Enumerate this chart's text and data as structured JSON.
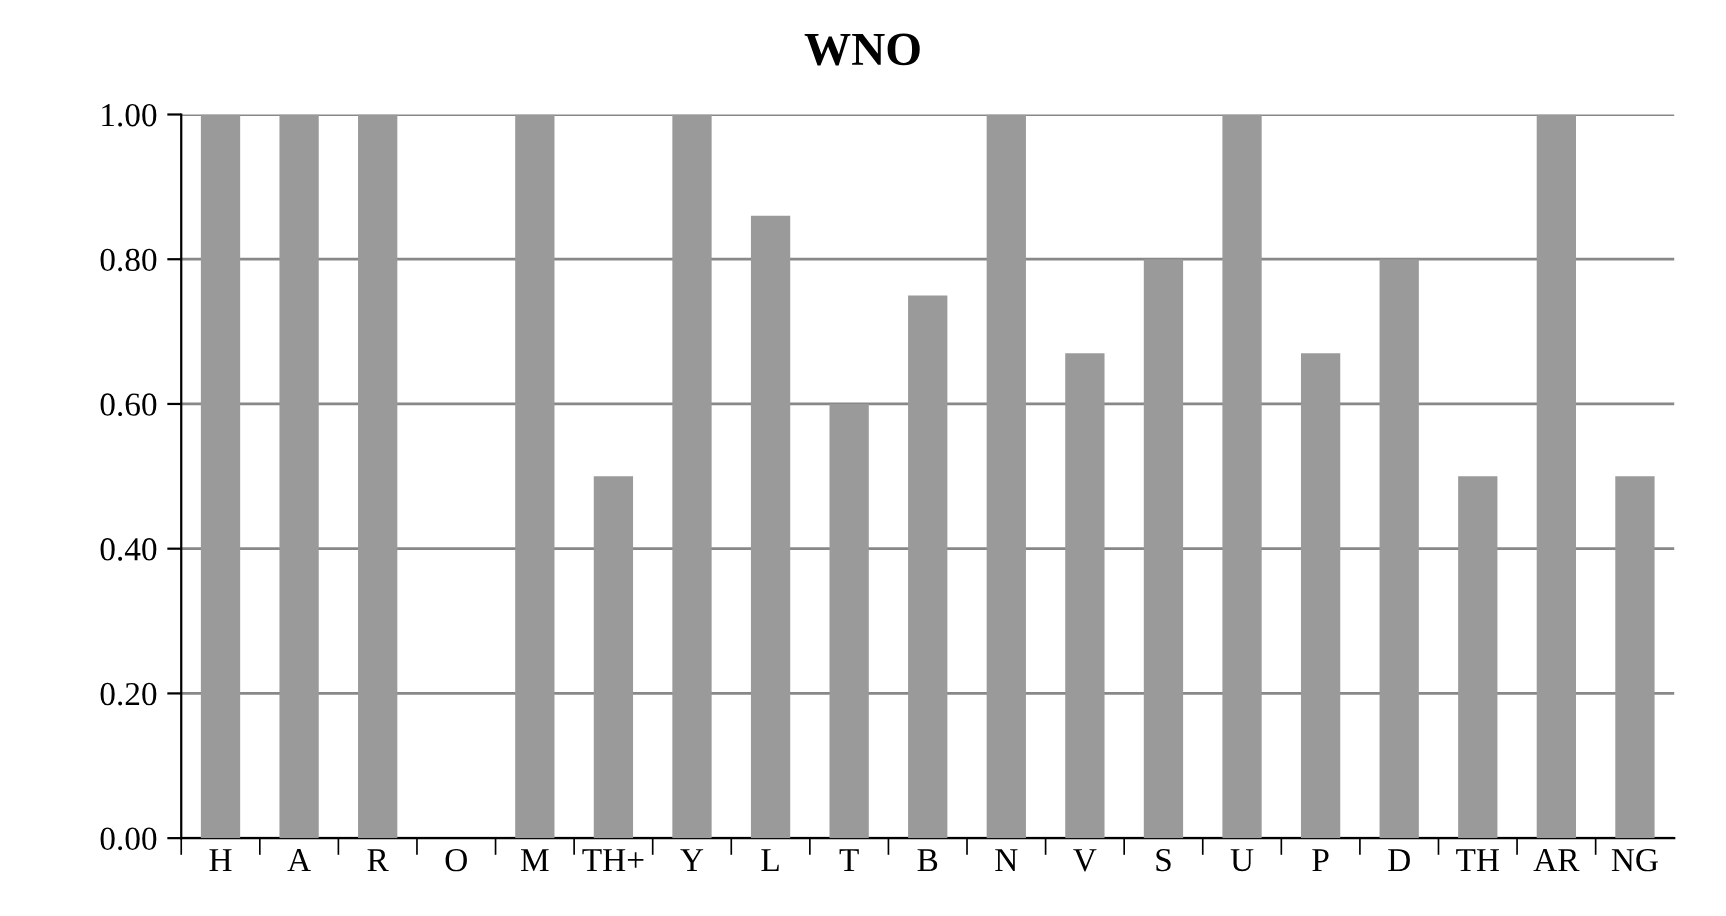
{
  "chart_data": {
    "type": "bar",
    "title": "WNO",
    "categories": [
      "H",
      "A",
      "R",
      "O",
      "M",
      "TH+",
      "Y",
      "L",
      "T",
      "B",
      "N",
      "V",
      "S",
      "U",
      "P",
      "D",
      "TH",
      "AR",
      "NG"
    ],
    "values": [
      1.0,
      1.0,
      1.0,
      0,
      1.0,
      0.5,
      1.0,
      0.86,
      0.6,
      0.75,
      1.0,
      0.67,
      0.8,
      1.0,
      0.67,
      0.8,
      0.5,
      1.0,
      0.5
    ],
    "color": "#9a9a9a",
    "ylim": [
      0,
      1.0
    ],
    "yticks": [
      {
        "value": 0,
        "label": "0.00"
      },
      {
        "value": 0.2,
        "label": "0.20"
      },
      {
        "value": 0.4,
        "label": "0.40"
      },
      {
        "value": 0.6,
        "label": "0.60"
      },
      {
        "value": 0.8,
        "label": "0.80"
      },
      {
        "value": 1.0,
        "label": "1.00"
      }
    ],
    "grid": "y"
  }
}
